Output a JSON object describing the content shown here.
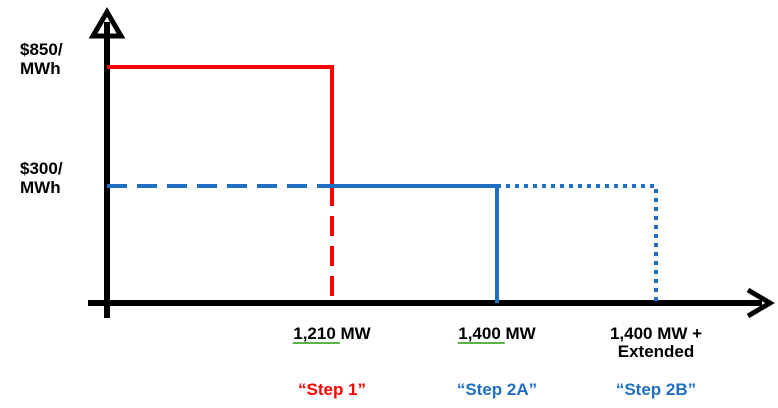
{
  "chart_data": {
    "type": "line",
    "title": "",
    "xlabel": "",
    "ylabel": "",
    "y_ticks": [
      {
        "value": 850,
        "line1": "$850/",
        "line2": "MWh"
      },
      {
        "value": 300,
        "line1": "$300/",
        "line2": "MWh"
      }
    ],
    "x_ticks": [
      {
        "value": 1210,
        "line1": "1,210 MW",
        "line2": "",
        "underline": "1,210",
        "step": "“Step 1”",
        "step_color": "#ff0000"
      },
      {
        "value": 1400,
        "line1": "1,400 MW",
        "line2": "",
        "underline": "1,400",
        "step": "“Step 2A”",
        "step_color": "#1f6fc5"
      },
      {
        "value": 1520,
        "line1": "1,400 MW +",
        "line2": "Extended",
        "underline": "",
        "step": "“Step 2B”",
        "step_color": "#1f6fc5"
      }
    ],
    "series": [
      {
        "style": "solid",
        "color": "#ff0000",
        "points": [
          [
            0,
            850
          ],
          [
            1210,
            850
          ],
          [
            1210,
            300
          ]
        ]
      },
      {
        "style": "dashed",
        "color": "#ff0000",
        "points": [
          [
            1210,
            300
          ],
          [
            1210,
            0
          ]
        ]
      },
      {
        "style": "dashed",
        "color": "#1f6fc5",
        "points": [
          [
            0,
            300
          ],
          [
            1210,
            300
          ]
        ]
      },
      {
        "style": "solid",
        "color": "#1f6fc5",
        "points": [
          [
            1210,
            300
          ],
          [
            1400,
            300
          ],
          [
            1400,
            0
          ]
        ]
      },
      {
        "style": "dotted",
        "color": "#1f6fc5",
        "points": [
          [
            1400,
            300
          ],
          [
            1520,
            300
          ],
          [
            1520,
            0
          ]
        ]
      }
    ],
    "grid": false,
    "legend": "none"
  }
}
